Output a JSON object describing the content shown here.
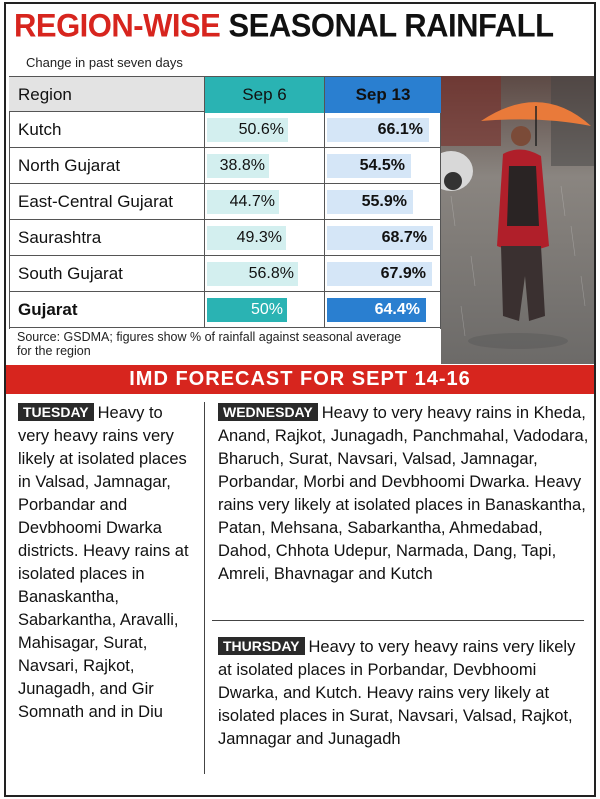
{
  "headline": {
    "part1": "REGION-WISE",
    "part2": "SEASONAL RAINFALL"
  },
  "subhead": "Change in past seven days",
  "chart_data": {
    "type": "table",
    "columns": [
      "Region",
      "Sep 6",
      "Sep 13"
    ],
    "rows": [
      {
        "region": "Kutch",
        "sep6": 50.6,
        "sep13": 66.1,
        "sep6_label": "50.6%",
        "sep13_label": "66.1%"
      },
      {
        "region": "North Gujarat",
        "sep6": 38.8,
        "sep13": 54.5,
        "sep6_label": "38.8%",
        "sep13_label": "54.5%"
      },
      {
        "region": "East-Central Gujarat",
        "sep6": 44.7,
        "sep13": 55.9,
        "sep6_label": "44.7%",
        "sep13_label": "55.9%"
      },
      {
        "region": "Saurashtra",
        "sep6": 49.3,
        "sep13": 68.7,
        "sep6_label": "49.3%",
        "sep13_label": "68.7%"
      },
      {
        "region": "South Gujarat",
        "sep6": 56.8,
        "sep13": 67.9,
        "sep6_label": "56.8%",
        "sep13_label": "67.9%"
      },
      {
        "region": "Gujarat",
        "sep6": 50,
        "sep13": 64.4,
        "sep6_label": "50%",
        "sep13_label": "64.4%"
      }
    ]
  },
  "source": "Source: GSDMA; figures show % of rainfall against seasonal average for the region",
  "banner": "IMD FORECAST FOR SEPT 14-16",
  "forecast": {
    "tuesday": {
      "day": "TUESDAY",
      "text": "Heavy to very heavy rains very likely at isolated places in Valsad, Jamnagar, Porbandar and Devbhoomi Dwarka districts. Heavy rains at isolated places in Banaskantha, Sabarkantha, Aravalli, Mahisagar, Surat, Navsari, Rajkot, Junagadh, and Gir Somnath and in Diu"
    },
    "wednesday": {
      "day": "WEDNESDAY",
      "text": "Heavy to very heavy rains in Kheda, Anand, Rajkot, Junagadh, Panchmahal, Vadodara, Bharuch, Surat, Navsari, Valsad, Jamnagar, Porbandar, Morbi and Devbhoomi Dwarka. Heavy rains very likely at isolated places in Banaskantha, Patan, Mehsana, Sabarkantha, Ahmedabad, Dahod, Chhota Udepur, Narmada, Dang, Tapi, Amreli, Bhavnagar and Kutch"
    },
    "thursday": {
      "day": "THURSDAY",
      "text": "Heavy to very heavy rains very likely at isolated places in Porbandar, Devbhoomi Dwarka, and Kutch. Heavy rains very likely at isolated places in Surat, Navsari, Valsad, Rajkot, Jamnagar and Junagadh"
    }
  },
  "colors": {
    "accent_red": "#d7251e",
    "sep6": "#2ab3b3",
    "sep13": "#2a7fd0"
  }
}
